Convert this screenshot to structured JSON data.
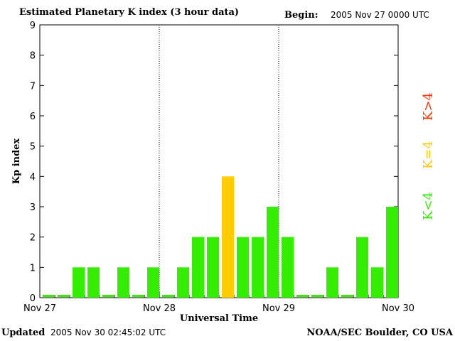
{
  "header": {
    "title": "Estimated Planetary K index (3 hour data)",
    "begin_label": "Begin:",
    "begin_value": "2005 Nov 27 0000 UTC"
  },
  "footer": {
    "updated_label": "Updated",
    "updated_value": "2005 Nov 30 02:45:02 UTC",
    "source": "NOAA/SEC Boulder, CO USA"
  },
  "legend": [
    {
      "label": "K>4",
      "color": "#ff3300"
    },
    {
      "label": "K=4",
      "color": "#ffcc00"
    },
    {
      "label": "K<4",
      "color": "#33ee00"
    }
  ],
  "chart_data": {
    "type": "bar",
    "title": "Estimated Planetary K index (3 hour data)",
    "xlabel": "Universal Time",
    "ylabel": "Kp index",
    "ylim": [
      0,
      9
    ],
    "yticks": [
      0,
      1,
      2,
      3,
      4,
      5,
      6,
      7,
      8,
      9
    ],
    "x_tick_labels": [
      "Nov 27",
      "Nov 28",
      "Nov 29",
      "Nov 30"
    ],
    "day_dividers": [
      "Nov 28",
      "Nov 29"
    ],
    "categories": [
      "Nov 27 00",
      "Nov 27 03",
      "Nov 27 06",
      "Nov 27 09",
      "Nov 27 12",
      "Nov 27 15",
      "Nov 27 18",
      "Nov 27 21",
      "Nov 28 00",
      "Nov 28 03",
      "Nov 28 06",
      "Nov 28 09",
      "Nov 28 12",
      "Nov 28 15",
      "Nov 28 18",
      "Nov 28 21",
      "Nov 29 00",
      "Nov 29 03",
      "Nov 29 06",
      "Nov 29 09",
      "Nov 29 12",
      "Nov 29 15",
      "Nov 29 18",
      "Nov 29 21"
    ],
    "values": [
      0,
      0,
      1,
      1,
      0,
      1,
      0,
      1,
      0,
      1,
      2,
      2,
      4,
      2,
      2,
      3,
      2,
      0,
      0,
      1,
      0,
      2,
      1,
      3
    ],
    "colors": {
      "below": "#33ee00",
      "equal": "#ffcc00",
      "above": "#ff3300"
    }
  }
}
